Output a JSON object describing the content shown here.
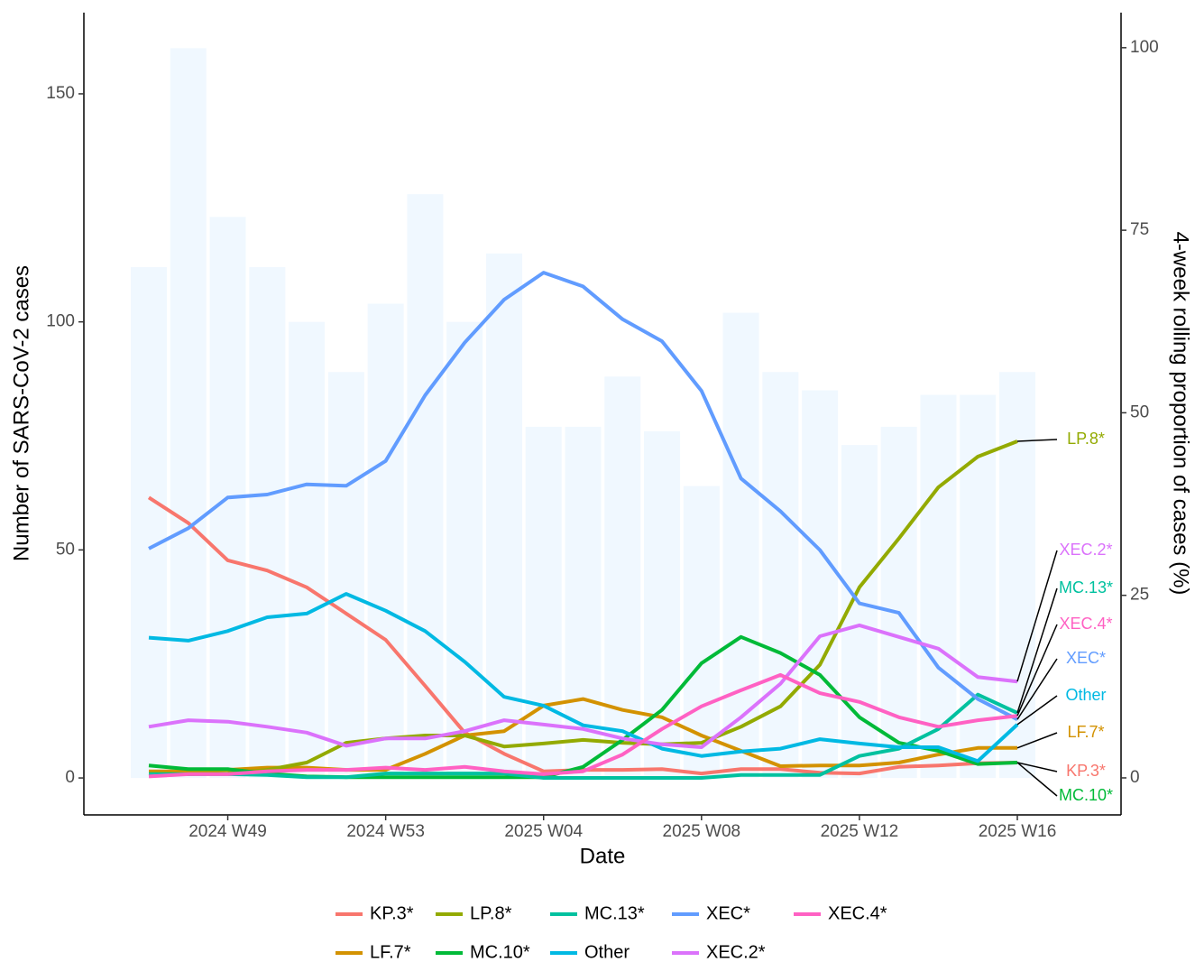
{
  "chart_data": {
    "type": "bar-line",
    "x_label": "Date",
    "y_label": "Number of SARS-CoV-2 cases",
    "y2_label": "4-week rolling proportion of cases (%)",
    "categories": [
      null,
      null,
      "2024 W49",
      null,
      null,
      null,
      "2024 W53",
      null,
      null,
      null,
      "2025 W04",
      null,
      null,
      null,
      "2025 W08",
      null,
      null,
      null,
      "2025 W12",
      null,
      null,
      null,
      "2025 W16"
    ],
    "bars": {
      "color": "#f0f8ff",
      "values": [
        112,
        160,
        123,
        112,
        100,
        89,
        104,
        128,
        100,
        115,
        77,
        77,
        88,
        76,
        64,
        102,
        89,
        85,
        73,
        77,
        84,
        84,
        89
      ]
    },
    "ylim": [
      -8.1,
      167.8
    ],
    "yticks": [
      0,
      50,
      100,
      150
    ],
    "y2lim": [
      -5.07,
      104.8
    ],
    "y2ticks": [
      0,
      25,
      50,
      75,
      100
    ],
    "series": [
      {
        "name": "KP.3*",
        "color": "#F8766D",
        "axis": "y2",
        "values": [
          38.4,
          34.9,
          29.8,
          28.4,
          26.1,
          22.5,
          18.9,
          12.6,
          6.2,
          3.3,
          0.9,
          1.1,
          1.1,
          1.2,
          0.6,
          1.2,
          1.2,
          0.7,
          0.6,
          1.5,
          1.7,
          2.0,
          2.1
        ]
      },
      {
        "name": "LF.7*",
        "color": "#D39200",
        "axis": "y2",
        "values": [
          0.9,
          0.9,
          1.1,
          1.4,
          1.4,
          1.1,
          1.1,
          3.3,
          5.8,
          6.4,
          9.9,
          10.8,
          9.3,
          8.3,
          5.8,
          3.7,
          1.6,
          1.7,
          1.7,
          2.1,
          3.2,
          4.1,
          4.1
        ]
      },
      {
        "name": "LP.8*",
        "color": "#93AA00",
        "axis": "y2",
        "values": [
          0.6,
          0.5,
          0.6,
          1.1,
          2.1,
          4.8,
          5.4,
          5.8,
          5.8,
          4.3,
          4.7,
          5.2,
          4.8,
          4.6,
          4.8,
          7.0,
          9.8,
          15.5,
          26.1,
          32.8,
          39.8,
          44.0,
          46.1
        ]
      },
      {
        "name": "MC.10*",
        "color": "#00BA38",
        "axis": "y2",
        "values": [
          1.7,
          1.2,
          1.2,
          0.6,
          0.2,
          0.1,
          0.1,
          0.1,
          0.1,
          0.1,
          0.1,
          1.5,
          5.2,
          9.3,
          15.7,
          19.3,
          17.1,
          14.1,
          8.3,
          4.8,
          3.7,
          1.9,
          2.1
        ]
      },
      {
        "name": "MC.13*",
        "color": "#00C19F",
        "axis": "y2",
        "values": [
          0.5,
          0.5,
          0.5,
          0.4,
          0.1,
          0.1,
          0.6,
          0.6,
          0.6,
          0.6,
          0,
          0,
          0,
          0,
          0,
          0.4,
          0.4,
          0.4,
          3.0,
          4.0,
          6.7,
          11.4,
          8.9
        ]
      },
      {
        "name": "Other",
        "color": "#00B9E3",
        "axis": "y2",
        "values": [
          19.2,
          18.8,
          20.1,
          22.0,
          22.5,
          25.2,
          22.9,
          20.1,
          15.9,
          11.1,
          9.9,
          7.2,
          6.4,
          4.0,
          3.0,
          3.6,
          4.0,
          5.3,
          4.7,
          4.2,
          4.2,
          2.3,
          7.3
        ]
      },
      {
        "name": "XEC*",
        "color": "#619CFF",
        "axis": "y2",
        "values": [
          31.4,
          34.2,
          38.4,
          38.8,
          40.2,
          40.0,
          43.4,
          52.4,
          59.6,
          65.5,
          69.2,
          67.3,
          62.8,
          59.8,
          53.0,
          41.0,
          36.5,
          31.2,
          23.9,
          22.6,
          15.1,
          10.8,
          8.0
        ]
      },
      {
        "name": "XEC.2*",
        "color": "#DB72FB",
        "axis": "y2",
        "values": [
          7.0,
          7.9,
          7.7,
          7.0,
          6.2,
          4.4,
          5.4,
          5.4,
          6.4,
          7.9,
          7.3,
          6.7,
          5.4,
          4.6,
          4.2,
          8.3,
          12.9,
          19.4,
          20.9,
          19.3,
          17.7,
          13.8,
          13.2
        ]
      },
      {
        "name": "XEC.4*",
        "color": "#FF61C3",
        "axis": "y2",
        "values": [
          0.2,
          0.5,
          0.5,
          0.9,
          1.1,
          1.1,
          1.4,
          1.1,
          1.5,
          0.9,
          0.5,
          0.9,
          3.2,
          6.7,
          9.8,
          12.0,
          14.1,
          11.6,
          10.4,
          8.3,
          7.0,
          7.9,
          8.5
        ]
      }
    ],
    "legend": "bottom"
  }
}
